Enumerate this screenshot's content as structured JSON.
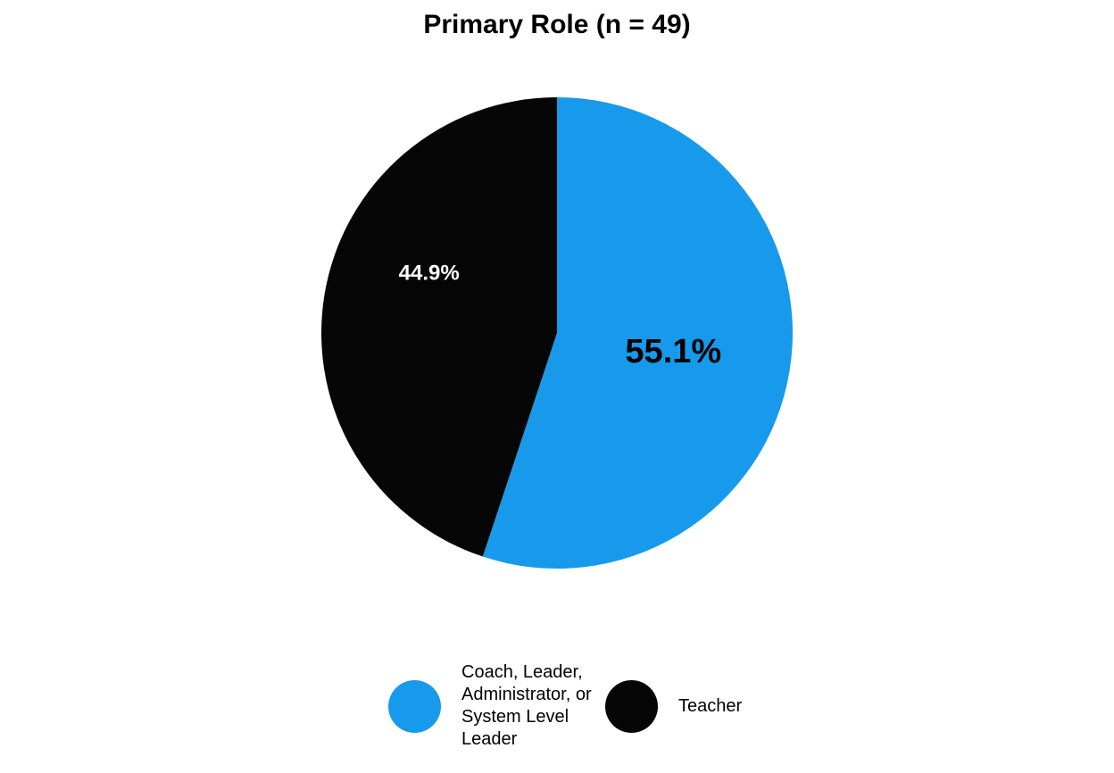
{
  "chart_data": {
    "type": "pie",
    "title": "Primary Role (n = 49)",
    "slices": [
      {
        "label": "Coach, Leader, Administrator, or System Level Leader",
        "value": 55.1,
        "display": "55.1%",
        "color": "#179AEB",
        "label_color": "#000000"
      },
      {
        "label": "Teacher",
        "value": 44.9,
        "display": "44.9%",
        "color": "#060606",
        "label_color": "#FFFFFF"
      }
    ],
    "start_angle": "12 o'clock",
    "direction": "clockwise",
    "legend_position": "bottom"
  }
}
